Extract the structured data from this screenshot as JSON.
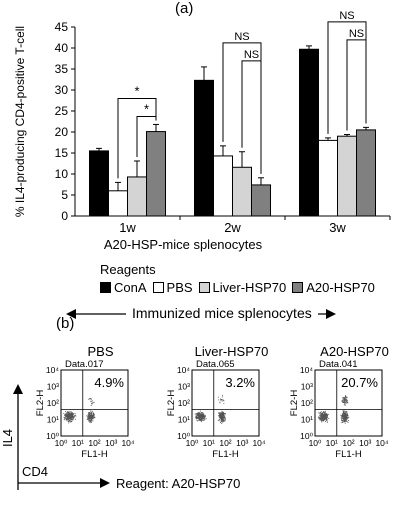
{
  "figure": {
    "panel_a_label": "(a)",
    "panel_b_label": "(b)"
  },
  "chart_data": [
    {
      "type": "bar",
      "ylabel": "% IL4-producing CD4-positive T-cell",
      "xlabel": "A20-HSP-mice splenocytes",
      "categories": [
        "1w",
        "2w",
        "3w"
      ],
      "ylim": [
        0,
        45
      ],
      "yticks": [
        0,
        5,
        10,
        15,
        20,
        25,
        30,
        35,
        40,
        45
      ],
      "legend_title": "Reagents",
      "series": [
        {
          "name": "ConA",
          "color": "#000000",
          "values": [
            15.5,
            32.3,
            39.7
          ],
          "errors": [
            0.6,
            3.2,
            0.8
          ]
        },
        {
          "name": "PBS",
          "color": "#ffffff",
          "values": [
            6.0,
            14.3,
            18.0
          ],
          "errors": [
            2.0,
            2.4,
            0.6
          ]
        },
        {
          "name": "Liver-HSP70",
          "color": "#d4d4d4",
          "values": [
            9.3,
            11.6,
            19.0
          ],
          "errors": [
            3.8,
            3.7,
            0.4
          ]
        },
        {
          "name": "A20-HSP70",
          "color": "#808080",
          "values": [
            20.1,
            7.4,
            20.5
          ],
          "errors": [
            1.7,
            1.7,
            0.6
          ]
        }
      ],
      "annotations": [
        {
          "group": "1w",
          "from": "PBS",
          "to": "A20-HSP70",
          "label": "*"
        },
        {
          "group": "1w",
          "from": "Liver-HSP70",
          "to": "A20-HSP70",
          "label": "*"
        },
        {
          "group": "2w",
          "from": "PBS",
          "to": "A20-HSP70",
          "label": "NS"
        },
        {
          "group": "2w",
          "from": "Liver-HSP70",
          "to": "A20-HSP70",
          "label": "NS"
        },
        {
          "group": "3w",
          "from": "PBS",
          "to": "A20-HSP70",
          "label": "NS"
        },
        {
          "group": "3w",
          "from": "Liver-HSP70",
          "to": "A20-HSP70",
          "label": "NS"
        }
      ]
    },
    {
      "type": "scatter",
      "caption": "Immunized mice splenocytes",
      "x_axis_name": "CD4",
      "y_axis_name": "IL4",
      "reagent_label": "Reagent: A20-HSP70",
      "xlabel": "FL1-H",
      "ylabel": "FL2-H",
      "x_scale": "log",
      "y_scale": "log",
      "xlim": [
        1,
        10000
      ],
      "ylim": [
        1,
        10000
      ],
      "tick_labels": [
        "10⁰",
        "10¹",
        "10²",
        "10³",
        "10⁴"
      ],
      "plots": [
        {
          "title": "PBS",
          "file": "Data.017",
          "percent": "4.9%",
          "quadrant": "upper-right"
        },
        {
          "title": "Liver-HSP70",
          "file": "Data.065",
          "percent": "3.2%",
          "quadrant": "upper-right"
        },
        {
          "title": "A20-HSP70",
          "file": "Data.041",
          "percent": "20.7%",
          "quadrant": "upper-right"
        }
      ]
    }
  ]
}
